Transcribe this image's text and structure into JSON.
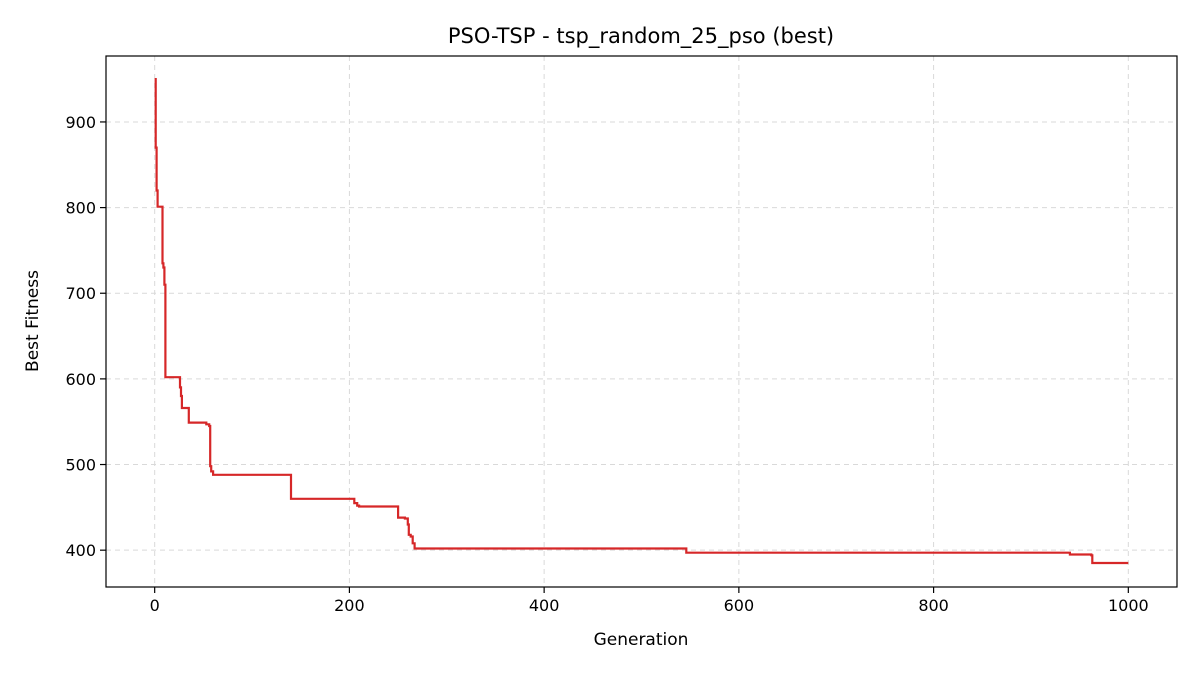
{
  "chart_data": {
    "type": "line",
    "title": "PSO-TSP - tsp_random_25_pso (best)",
    "xlabel": "Generation",
    "ylabel": "Best Fitness",
    "xlim": [
      -50,
      1050
    ],
    "ylim": [
      357,
      977
    ],
    "xticks": [
      0,
      200,
      400,
      600,
      800,
      1000
    ],
    "yticks": [
      400,
      500,
      600,
      700,
      800,
      900
    ],
    "grid": true,
    "colors": {
      "line": "#d62728"
    },
    "series": [
      {
        "step": true,
        "x": [
          0,
          1,
          2,
          3,
          4,
          5,
          8,
          9,
          10,
          11,
          25,
          26,
          27,
          28,
          30,
          33,
          35,
          50,
          53,
          55,
          56,
          57,
          58,
          60,
          138,
          139,
          140,
          202,
          205,
          208,
          210,
          245,
          250,
          257,
          260,
          261,
          263,
          265,
          267,
          545,
          546,
          910,
          940,
          962,
          963,
          1000
        ],
        "y": [
          950,
          870,
          820,
          801,
          801,
          801,
          735,
          730,
          710,
          602,
          602,
          590,
          580,
          566,
          566,
          566,
          549,
          549,
          547,
          547,
          545,
          498,
          492,
          488,
          488,
          488,
          460,
          460,
          455,
          452,
          451,
          451,
          438,
          437,
          430,
          418,
          416,
          408,
          402,
          402,
          397,
          397,
          395,
          394,
          385,
          385
        ]
      }
    ]
  }
}
